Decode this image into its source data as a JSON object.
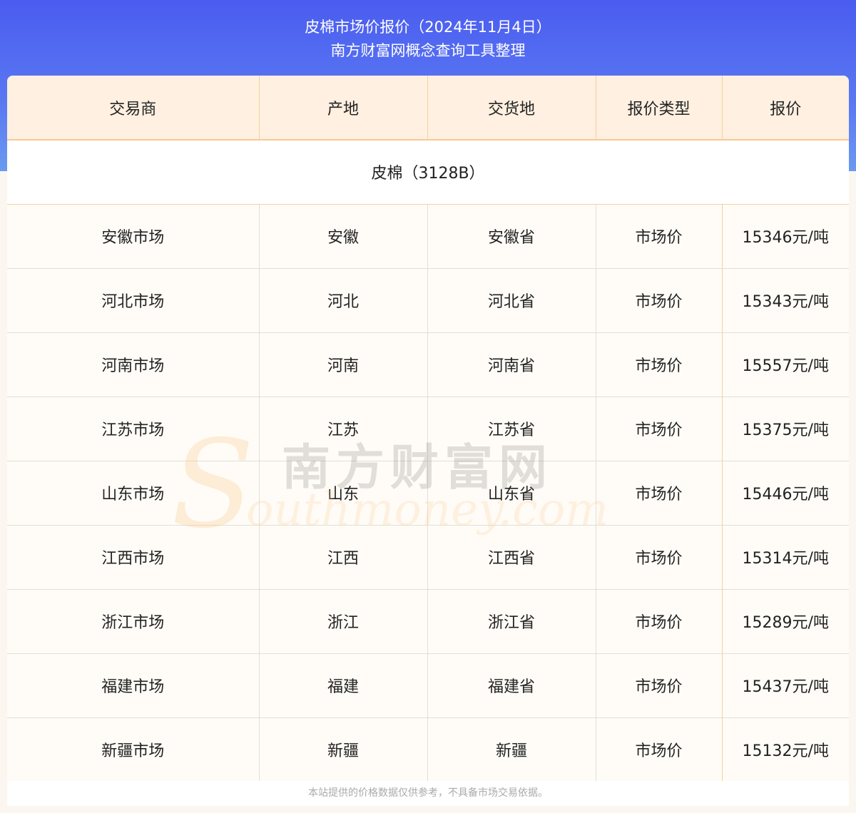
{
  "header": {
    "title": "皮棉市场价报价（2024年11月4日）",
    "subtitle": "南方财富网概念查询工具整理"
  },
  "table": {
    "columns": [
      "交易商",
      "产地",
      "交货地",
      "报价类型",
      "报价"
    ],
    "group": "皮棉（3128B）",
    "rows": [
      [
        "安徽市场",
        "安徽",
        "安徽省",
        "市场价",
        "15346元/吨"
      ],
      [
        "河北市场",
        "河北",
        "河北省",
        "市场价",
        "15343元/吨"
      ],
      [
        "河南市场",
        "河南",
        "河南省",
        "市场价",
        "15557元/吨"
      ],
      [
        "江苏市场",
        "江苏",
        "江苏省",
        "市场价",
        "15375元/吨"
      ],
      [
        "山东市场",
        "山东",
        "山东省",
        "市场价",
        "15446元/吨"
      ],
      [
        "江西市场",
        "江西",
        "江西省",
        "市场价",
        "15314元/吨"
      ],
      [
        "浙江市场",
        "浙江",
        "浙江省",
        "市场价",
        "15289元/吨"
      ],
      [
        "福建市场",
        "福建",
        "福建省",
        "市场价",
        "15437元/吨"
      ],
      [
        "新疆市场",
        "新疆",
        "新疆",
        "市场价",
        "15132元/吨"
      ]
    ]
  },
  "footer": {
    "note": "本站提供的价格数据仅供参考，不具备市场交易依据。"
  },
  "watermark": {
    "cn": "南方财富网",
    "en": "Southmoney.com"
  },
  "colors": {
    "banner": "#4a5cf0",
    "header_bg": "#fff0e1",
    "row_bg": "#fffcf7"
  }
}
